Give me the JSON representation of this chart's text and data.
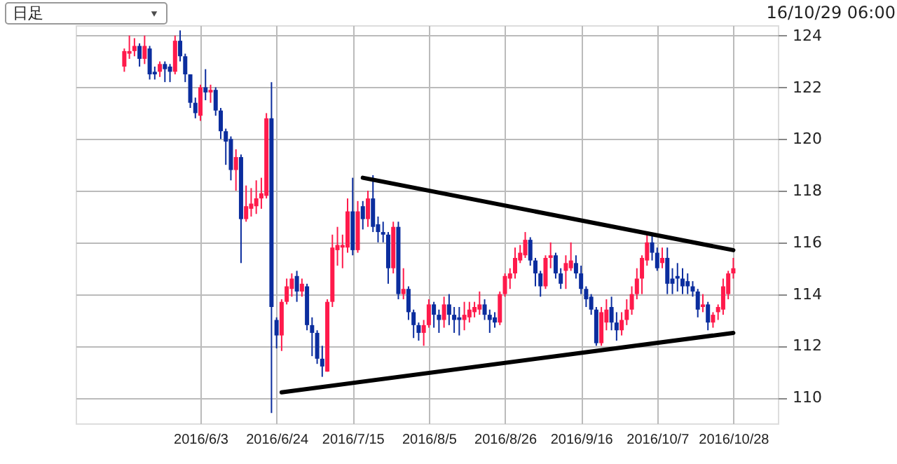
{
  "chart_data": {
    "type": "candlestick",
    "categories": [
      null,
      null,
      null,
      null,
      null,
      null,
      null,
      null,
      null,
      null,
      null,
      null,
      null,
      null,
      null,
      "2016/6/3",
      null,
      null,
      null,
      null,
      null,
      null,
      null,
      null,
      null,
      null,
      null,
      null,
      null,
      null,
      "2016/6/24",
      null,
      null,
      null,
      null,
      null,
      null,
      null,
      null,
      null,
      null,
      null,
      null,
      null,
      null,
      "2016/7/15",
      null,
      null,
      null,
      null,
      null,
      null,
      null,
      null,
      null,
      null,
      null,
      null,
      null,
      null,
      "2016/8/5",
      null,
      null,
      null,
      null,
      null,
      null,
      null,
      null,
      null,
      null,
      null,
      null,
      null,
      null,
      "2016/8/26",
      null,
      null,
      null,
      null,
      null,
      null,
      null,
      null,
      null,
      null,
      null,
      null,
      null,
      null,
      "2016/9/16",
      null,
      null,
      null,
      null,
      null,
      null,
      null,
      null,
      null,
      null,
      null,
      null,
      null,
      null,
      "2016/10/7",
      null,
      null,
      null,
      null,
      null,
      null,
      null,
      null,
      null,
      null,
      null,
      null,
      null,
      null,
      "2016/10/28"
    ],
    "ohlc": [
      [
        122.8,
        123.5,
        122.6,
        123.4
      ],
      [
        123.3,
        124.0,
        123.1,
        123.4
      ],
      [
        123.4,
        123.9,
        123.2,
        123.6
      ],
      [
        123.6,
        123.7,
        122.8,
        123.1
      ],
      [
        123.1,
        124.0,
        122.9,
        123.6
      ],
      [
        123.5,
        123.6,
        122.3,
        122.5
      ],
      [
        122.6,
        122.8,
        122.3,
        122.5
      ],
      [
        122.6,
        123.0,
        122.4,
        122.9
      ],
      [
        122.9,
        123.0,
        122.2,
        122.7
      ],
      [
        122.8,
        122.9,
        122.2,
        122.6
      ],
      [
        122.6,
        124.0,
        122.5,
        123.8
      ],
      [
        123.8,
        124.2,
        123.0,
        123.2
      ],
      [
        123.2,
        123.3,
        122.2,
        122.5
      ],
      [
        122.5,
        122.5,
        121.2,
        121.4
      ],
      [
        121.4,
        121.6,
        120.8,
        121.0
      ],
      [
        120.9,
        122.1,
        120.7,
        122.0
      ],
      [
        122.0,
        122.7,
        121.5,
        121.8
      ],
      [
        121.8,
        122.1,
        121.4,
        121.9
      ],
      [
        121.9,
        122.0,
        120.9,
        121.1
      ],
      [
        121.1,
        121.2,
        120.0,
        120.3
      ],
      [
        120.3,
        120.4,
        119.0,
        119.9
      ],
      [
        120.0,
        120.1,
        118.4,
        118.8
      ],
      [
        118.8,
        119.6,
        118.0,
        119.3
      ],
      [
        119.3,
        119.4,
        115.2,
        116.9
      ],
      [
        116.9,
        118.2,
        116.8,
        117.4
      ],
      [
        117.3,
        118.1,
        117.0,
        117.5
      ],
      [
        117.4,
        118.4,
        117.1,
        117.7
      ],
      [
        117.7,
        118.5,
        117.3,
        117.9
      ],
      [
        117.8,
        121.0,
        117.7,
        120.8
      ],
      [
        120.8,
        122.2,
        109.4,
        113.5
      ],
      [
        113.0,
        113.1,
        111.9,
        112.4
      ],
      [
        112.4,
        113.8,
        111.8,
        113.7
      ],
      [
        113.7,
        114.6,
        113.6,
        114.3
      ],
      [
        114.2,
        114.8,
        113.9,
        114.6
      ],
      [
        114.7,
        114.9,
        113.7,
        114.1
      ],
      [
        114.1,
        114.6,
        113.9,
        114.4
      ],
      [
        114.3,
        114.4,
        112.6,
        112.8
      ],
      [
        112.8,
        113.1,
        111.6,
        112.5
      ],
      [
        112.5,
        112.6,
        111.3,
        111.5
      ],
      [
        111.5,
        112.0,
        110.8,
        111.2
      ],
      [
        111.0,
        113.8,
        111.0,
        113.7
      ],
      [
        113.7,
        116.3,
        113.5,
        115.8
      ],
      [
        115.7,
        116.6,
        115.1,
        115.9
      ],
      [
        115.8,
        116.3,
        115.0,
        115.9
      ],
      [
        115.8,
        117.7,
        115.6,
        117.2
      ],
      [
        117.2,
        118.5,
        115.5,
        115.7
      ],
      [
        115.7,
        117.6,
        115.6,
        117.2
      ],
      [
        117.4,
        117.6,
        116.5,
        116.9
      ],
      [
        116.9,
        118.0,
        116.6,
        117.7
      ],
      [
        117.7,
        118.6,
        116.4,
        116.6
      ],
      [
        116.7,
        117.0,
        116.0,
        116.4
      ],
      [
        116.4,
        116.8,
        116.0,
        116.3
      ],
      [
        116.3,
        116.4,
        114.4,
        115.0
      ],
      [
        115.0,
        116.8,
        114.8,
        116.6
      ],
      [
        116.6,
        116.8,
        113.8,
        114.0
      ],
      [
        114.0,
        115.0,
        113.8,
        114.2
      ],
      [
        114.2,
        114.3,
        113.0,
        113.3
      ],
      [
        113.3,
        113.4,
        112.3,
        112.8
      ],
      [
        112.8,
        112.9,
        112.2,
        112.5
      ],
      [
        112.5,
        113.0,
        112.0,
        112.8
      ],
      [
        112.8,
        113.8,
        112.7,
        113.6
      ],
      [
        113.6,
        113.7,
        112.7,
        113.2
      ],
      [
        113.2,
        113.4,
        112.5,
        113.0
      ],
      [
        113.0,
        113.9,
        112.7,
        113.6
      ],
      [
        113.6,
        114.0,
        112.8,
        113.2
      ],
      [
        113.2,
        113.5,
        112.5,
        113.0
      ],
      [
        113.1,
        113.5,
        112.4,
        113.0
      ],
      [
        113.0,
        113.7,
        112.6,
        113.2
      ],
      [
        113.1,
        113.7,
        112.9,
        113.4
      ],
      [
        113.3,
        113.7,
        113.1,
        113.5
      ],
      [
        113.4,
        114.1,
        113.2,
        113.6
      ],
      [
        113.6,
        113.8,
        113.0,
        113.2
      ],
      [
        113.2,
        113.4,
        112.5,
        113.0
      ],
      [
        113.1,
        113.3,
        112.7,
        112.9
      ],
      [
        112.9,
        114.1,
        112.8,
        114.0
      ],
      [
        114.0,
        114.8,
        113.9,
        114.7
      ],
      [
        114.6,
        115.0,
        114.2,
        114.8
      ],
      [
        114.8,
        115.8,
        114.6,
        115.4
      ],
      [
        115.3,
        115.9,
        115.2,
        115.6
      ],
      [
        115.5,
        116.4,
        115.4,
        116.1
      ],
      [
        116.1,
        116.2,
        115.1,
        115.3
      ],
      [
        115.3,
        115.4,
        114.3,
        114.8
      ],
      [
        114.8,
        114.9,
        113.9,
        114.3
      ],
      [
        114.3,
        115.5,
        114.2,
        115.4
      ],
      [
        115.4,
        116.0,
        115.0,
        115.5
      ],
      [
        115.5,
        115.6,
        114.6,
        114.8
      ],
      [
        114.8,
        115.0,
        114.2,
        114.4
      ],
      [
        114.9,
        115.5,
        114.2,
        115.2
      ],
      [
        115.0,
        116.0,
        114.9,
        115.3
      ],
      [
        115.2,
        115.5,
        114.6,
        114.8
      ],
      [
        114.8,
        115.1,
        114.0,
        114.2
      ],
      [
        114.2,
        114.3,
        113.5,
        113.8
      ],
      [
        113.9,
        114.0,
        113.2,
        113.4
      ],
      [
        113.4,
        113.5,
        112.0,
        112.1
      ],
      [
        112.1,
        113.5,
        112.0,
        113.3
      ],
      [
        112.9,
        113.8,
        112.6,
        113.4
      ],
      [
        113.5,
        113.9,
        112.6,
        112.9
      ],
      [
        112.9,
        113.3,
        112.2,
        112.6
      ],
      [
        112.6,
        113.3,
        112.4,
        113.0
      ],
      [
        113.0,
        113.8,
        112.8,
        113.4
      ],
      [
        113.4,
        114.3,
        113.2,
        114.0
      ],
      [
        114.0,
        115.0,
        113.8,
        114.6
      ],
      [
        114.6,
        115.5,
        114.0,
        115.4
      ],
      [
        115.3,
        116.3,
        115.1,
        116.0
      ],
      [
        116.0,
        116.3,
        115.3,
        115.6
      ],
      [
        115.6,
        115.8,
        114.9,
        115.0
      ],
      [
        115.2,
        115.8,
        115.0,
        115.4
      ],
      [
        115.4,
        115.8,
        114.0,
        114.4
      ],
      [
        114.6,
        115.0,
        114.0,
        114.4
      ],
      [
        114.7,
        115.2,
        114.1,
        114.6
      ],
      [
        114.6,
        115.0,
        114.0,
        114.3
      ],
      [
        114.5,
        114.8,
        114.0,
        114.3
      ],
      [
        114.3,
        114.5,
        113.9,
        114.1
      ],
      [
        114.1,
        114.2,
        113.1,
        113.4
      ],
      [
        113.5,
        114.0,
        113.3,
        113.6
      ],
      [
        113.6,
        113.7,
        112.6,
        112.9
      ],
      [
        112.9,
        113.3,
        112.7,
        113.2
      ],
      [
        113.3,
        113.6,
        113.0,
        113.5
      ],
      [
        113.4,
        114.6,
        113.2,
        114.3
      ],
      [
        114.0,
        114.9,
        113.8,
        114.8
      ],
      [
        114.8,
        115.4,
        114.6,
        115.0
      ]
    ],
    "colors": [
      "#ff1a4b",
      "#ff1a4b",
      "#ff1a4b",
      "#0b2d9e",
      "#ff1a4b",
      "#0b2d9e",
      "#0b2d9e",
      "#ff1a4b",
      "#0b2d9e",
      "#0b2d9e",
      "#ff1a4b",
      "#0b2d9e",
      "#0b2d9e",
      "#0b2d9e",
      "#0b2d9e",
      "#ff1a4b",
      "#0b2d9e",
      "#ff1a4b",
      "#0b2d9e",
      "#0b2d9e",
      "#0b2d9e",
      "#0b2d9e",
      "#ff1a4b",
      "#0b2d9e",
      "#ff1a4b",
      "#ff1a4b",
      "#ff1a4b",
      "#ff1a4b",
      "#ff1a4b",
      "#0b2d9e",
      "#0b2d9e",
      "#ff1a4b",
      "#ff1a4b",
      "#ff1a4b",
      "#0b2d9e",
      "#ff1a4b",
      "#0b2d9e",
      "#0b2d9e",
      "#0b2d9e",
      "#0b2d9e",
      "#ff1a4b",
      "#ff1a4b",
      "#ff1a4b",
      "#ff1a4b",
      "#ff1a4b",
      "#0b2d9e",
      "#ff1a4b",
      "#0b2d9e",
      "#ff1a4b",
      "#0b2d9e",
      "#0b2d9e",
      "#0b2d9e",
      "#0b2d9e",
      "#ff1a4b",
      "#0b2d9e",
      "#ff1a4b",
      "#0b2d9e",
      "#0b2d9e",
      "#0b2d9e",
      "#ff1a4b",
      "#ff1a4b",
      "#0b2d9e",
      "#0b2d9e",
      "#ff1a4b",
      "#0b2d9e",
      "#0b2d9e",
      "#0b2d9e",
      "#ff1a4b",
      "#ff1a4b",
      "#ff1a4b",
      "#ff1a4b",
      "#0b2d9e",
      "#0b2d9e",
      "#0b2d9e",
      "#ff1a4b",
      "#ff1a4b",
      "#ff1a4b",
      "#ff1a4b",
      "#ff1a4b",
      "#ff1a4b",
      "#0b2d9e",
      "#0b2d9e",
      "#0b2d9e",
      "#ff1a4b",
      "#ff1a4b",
      "#0b2d9e",
      "#0b2d9e",
      "#ff1a4b",
      "#ff1a4b",
      "#0b2d9e",
      "#0b2d9e",
      "#0b2d9e",
      "#0b2d9e",
      "#0b2d9e",
      "#ff1a4b",
      "#ff1a4b",
      "#0b2d9e",
      "#0b2d9e",
      "#ff1a4b",
      "#ff1a4b",
      "#ff1a4b",
      "#ff1a4b",
      "#ff1a4b",
      "#ff1a4b",
      "#0b2d9e",
      "#0b2d9e",
      "#ff1a4b",
      "#0b2d9e",
      "#0b2d9e",
      "#0b2d9e",
      "#0b2d9e",
      "#0b2d9e",
      "#0b2d9e",
      "#0b2d9e",
      "#ff1a4b",
      "#0b2d9e",
      "#ff1a4b",
      "#ff1a4b",
      "#ff1a4b",
      "#ff1a4b",
      "#ff1a4b"
    ],
    "series": [
      {
        "type": "line",
        "color": "#000000",
        "values": [
          null,
          null,
          null,
          null,
          null,
          null,
          null,
          null,
          null,
          null,
          null,
          null,
          null,
          null,
          null,
          null,
          null,
          null,
          null,
          null,
          null,
          null,
          null,
          null,
          null,
          null,
          null,
          null,
          null,
          null,
          null,
          null,
          null,
          null,
          null,
          null,
          null,
          null,
          null,
          null,
          null,
          null,
          null,
          null,
          null,
          null,
          null,
          118.5,
          null,
          null,
          null,
          null,
          null,
          null,
          null,
          null,
          null,
          null,
          null,
          null,
          null,
          null,
          null,
          null,
          null,
          null,
          null,
          null,
          null,
          null,
          null,
          null,
          null,
          null,
          null,
          null,
          null,
          null,
          null,
          null,
          null,
          null,
          null,
          null,
          null,
          null,
          null,
          null,
          null,
          null,
          null,
          null,
          null,
          null,
          null,
          null,
          null,
          null,
          null,
          null,
          null,
          null,
          null,
          null,
          null,
          null,
          null,
          null,
          null,
          null,
          null,
          null,
          null,
          null,
          null,
          null,
          null,
          null,
          null,
          null,
          115.7
        ]
      },
      {
        "type": "line",
        "color": "#000000",
        "values": [
          null,
          null,
          null,
          null,
          null,
          null,
          null,
          null,
          null,
          null,
          null,
          null,
          null,
          null,
          null,
          null,
          null,
          null,
          null,
          null,
          null,
          null,
          null,
          null,
          null,
          null,
          null,
          null,
          null,
          null,
          null,
          110.2,
          null,
          null,
          null,
          null,
          null,
          null,
          null,
          null,
          null,
          null,
          null,
          null,
          null,
          null,
          null,
          null,
          null,
          null,
          null,
          null,
          null,
          null,
          null,
          null,
          null,
          null,
          null,
          null,
          null,
          null,
          null,
          null,
          null,
          null,
          null,
          null,
          null,
          null,
          null,
          null,
          null,
          null,
          null,
          null,
          null,
          null,
          null,
          null,
          null,
          null,
          null,
          null,
          null,
          null,
          null,
          null,
          null,
          null,
          null,
          null,
          null,
          null,
          null,
          null,
          null,
          null,
          null,
          null,
          null,
          null,
          null,
          null,
          null,
          null,
          null,
          null,
          null,
          null,
          null,
          null,
          null,
          null,
          null,
          null,
          null,
          null,
          null,
          null,
          112.5
        ]
      }
    ],
    "ylim": [
      109.0,
      124.4
    ],
    "yticks": [
      110,
      112,
      114,
      116,
      118,
      120,
      122,
      124
    ],
    "grid": true,
    "annotations": [
      "日足",
      "16/10/29 06:00"
    ]
  }
}
